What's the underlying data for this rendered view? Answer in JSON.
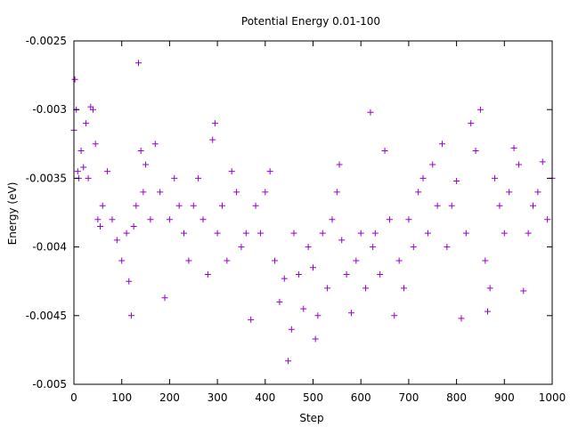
{
  "chart_data": {
    "type": "scatter",
    "title": "Potential Energy 0.01-100",
    "xlabel": "Step",
    "ylabel": "Energy (eV)",
    "xlim": [
      0,
      1000
    ],
    "ylim": [
      -0.005,
      -0.0025
    ],
    "xticks": [
      0,
      100,
      200,
      300,
      400,
      500,
      600,
      700,
      800,
      900,
      1000
    ],
    "yticks": [
      -0.005,
      -0.0045,
      -0.004,
      -0.0035,
      -0.003,
      -0.0025
    ],
    "xtick_labels": [
      "0",
      "100",
      "200",
      "300",
      "400",
      "500",
      "600",
      "700",
      "800",
      "900",
      "1000"
    ],
    "ytick_labels": [
      "-0.005",
      "-0.0045",
      "-0.004",
      "-0.0035",
      "-0.003",
      "-0.0025"
    ],
    "grid": false,
    "marker": "plus",
    "color": "#9400d3",
    "series": [
      {
        "points": [
          [
            0,
            -0.00315
          ],
          [
            2,
            -0.00278
          ],
          [
            5,
            -0.003
          ],
          [
            8,
            -0.00345
          ],
          [
            10,
            -0.0035
          ],
          [
            15,
            -0.0033
          ],
          [
            20,
            -0.00342
          ],
          [
            25,
            -0.0031
          ],
          [
            30,
            -0.0035
          ],
          [
            35,
            -0.00298
          ],
          [
            40,
            -0.003
          ],
          [
            45,
            -0.00325
          ],
          [
            50,
            -0.0038
          ],
          [
            55,
            -0.00385
          ],
          [
            60,
            -0.0037
          ],
          [
            70,
            -0.00345
          ],
          [
            80,
            -0.0038
          ],
          [
            90,
            -0.00395
          ],
          [
            100,
            -0.0041
          ],
          [
            110,
            -0.0039
          ],
          [
            115,
            -0.00425
          ],
          [
            120,
            -0.0045
          ],
          [
            125,
            -0.00385
          ],
          [
            130,
            -0.0037
          ],
          [
            135,
            -0.00266
          ],
          [
            140,
            -0.0033
          ],
          [
            145,
            -0.0036
          ],
          [
            150,
            -0.0034
          ],
          [
            160,
            -0.0038
          ],
          [
            170,
            -0.00325
          ],
          [
            180,
            -0.0036
          ],
          [
            190,
            -0.00437
          ],
          [
            200,
            -0.0038
          ],
          [
            210,
            -0.0035
          ],
          [
            220,
            -0.0037
          ],
          [
            230,
            -0.0039
          ],
          [
            240,
            -0.0041
          ],
          [
            250,
            -0.0037
          ],
          [
            260,
            -0.0035
          ],
          [
            270,
            -0.0038
          ],
          [
            280,
            -0.0042
          ],
          [
            290,
            -0.00322
          ],
          [
            295,
            -0.0031
          ],
          [
            300,
            -0.0039
          ],
          [
            310,
            -0.0037
          ],
          [
            320,
            -0.0041
          ],
          [
            330,
            -0.00345
          ],
          [
            340,
            -0.0036
          ],
          [
            350,
            -0.004
          ],
          [
            360,
            -0.0039
          ],
          [
            370,
            -0.00453
          ],
          [
            380,
            -0.0037
          ],
          [
            390,
            -0.0039
          ],
          [
            400,
            -0.0036
          ],
          [
            410,
            -0.00345
          ],
          [
            420,
            -0.0041
          ],
          [
            430,
            -0.0044
          ],
          [
            440,
            -0.00423
          ],
          [
            448,
            -0.00483
          ],
          [
            455,
            -0.0046
          ],
          [
            460,
            -0.0039
          ],
          [
            470,
            -0.0042
          ],
          [
            480,
            -0.00445
          ],
          [
            490,
            -0.004
          ],
          [
            500,
            -0.00415
          ],
          [
            505,
            -0.00467
          ],
          [
            510,
            -0.0045
          ],
          [
            520,
            -0.0039
          ],
          [
            530,
            -0.0043
          ],
          [
            540,
            -0.0038
          ],
          [
            550,
            -0.0036
          ],
          [
            555,
            -0.0034
          ],
          [
            560,
            -0.00395
          ],
          [
            570,
            -0.0042
          ],
          [
            580,
            -0.00448
          ],
          [
            590,
            -0.0041
          ],
          [
            600,
            -0.0039
          ],
          [
            610,
            -0.0043
          ],
          [
            620,
            -0.00302
          ],
          [
            625,
            -0.004
          ],
          [
            630,
            -0.0039
          ],
          [
            640,
            -0.0042
          ],
          [
            650,
            -0.0033
          ],
          [
            660,
            -0.0038
          ],
          [
            670,
            -0.0045
          ],
          [
            680,
            -0.0041
          ],
          [
            690,
            -0.0043
          ],
          [
            700,
            -0.0038
          ],
          [
            710,
            -0.004
          ],
          [
            720,
            -0.0036
          ],
          [
            730,
            -0.0035
          ],
          [
            740,
            -0.0039
          ],
          [
            750,
            -0.0034
          ],
          [
            760,
            -0.0037
          ],
          [
            770,
            -0.00325
          ],
          [
            780,
            -0.004
          ],
          [
            790,
            -0.0037
          ],
          [
            800,
            -0.00352
          ],
          [
            810,
            -0.00452
          ],
          [
            820,
            -0.0039
          ],
          [
            830,
            -0.0031
          ],
          [
            840,
            -0.0033
          ],
          [
            850,
            -0.003
          ],
          [
            860,
            -0.0041
          ],
          [
            865,
            -0.00447
          ],
          [
            870,
            -0.0043
          ],
          [
            880,
            -0.0035
          ],
          [
            890,
            -0.0037
          ],
          [
            900,
            -0.0039
          ],
          [
            910,
            -0.0036
          ],
          [
            920,
            -0.00328
          ],
          [
            930,
            -0.0034
          ],
          [
            940,
            -0.00432
          ],
          [
            950,
            -0.0039
          ],
          [
            960,
            -0.0037
          ],
          [
            970,
            -0.0036
          ],
          [
            980,
            -0.00338
          ],
          [
            990,
            -0.0038
          ],
          [
            1000,
            -0.0035
          ]
        ]
      }
    ]
  }
}
